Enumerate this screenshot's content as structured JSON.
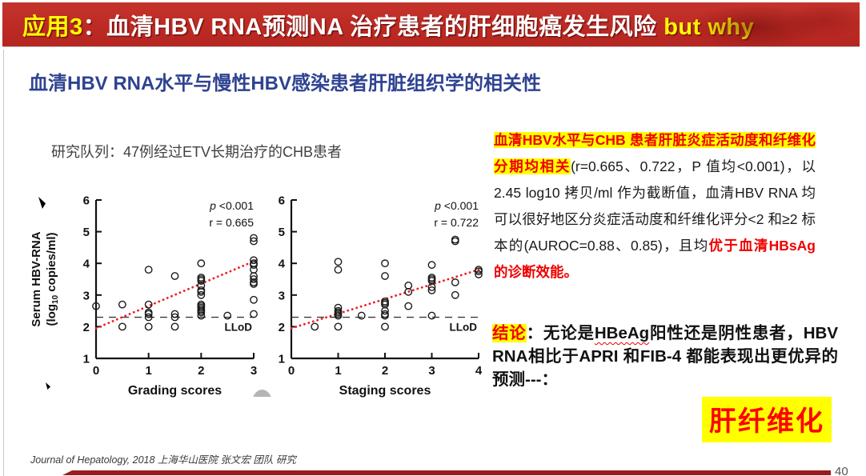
{
  "banner": {
    "tag": "应用3",
    "main": "：血清HBV RNA预测NA 治疗患者的肝细胞癌发生风险 ",
    "suffix": "but why"
  },
  "subtitle": "血清HBV RNA水平与慢性HBV感染患者肝脏组织学的相关性",
  "cohort": "研究队列：47例经过ETV长期治疗的CHB患者",
  "chart_data": [
    {
      "type": "scatter",
      "xlabel": "Grading scores",
      "ylabel_line1": "Serum HBV-RNA",
      "ylabel_line2_pre": "(log",
      "ylabel_line2_sub": "10",
      "ylabel_line2_post": " copies/ml)",
      "xlim": [
        0,
        3
      ],
      "ylim": [
        1,
        6
      ],
      "xticks": [
        0,
        1,
        2,
        3
      ],
      "yticks": [
        1,
        2,
        3,
        4,
        5,
        6
      ],
      "p_label": "p",
      "p_value": " <0.001",
      "r_label": "r = 0.665",
      "llod": {
        "y": 2.3,
        "label": "LLoD"
      },
      "trend": {
        "x1": 0,
        "y1": 1.95,
        "x2": 3.08,
        "y2": 4.12,
        "color": "#ee1c25"
      },
      "points": [
        [
          0,
          2.65
        ],
        [
          0.5,
          2.7
        ],
        [
          0.5,
          2.0
        ],
        [
          1,
          3.8
        ],
        [
          1,
          2.7
        ],
        [
          1,
          2.45
        ],
        [
          1,
          2.4
        ],
        [
          1,
          2.3
        ],
        [
          1,
          2.0
        ],
        [
          1.5,
          3.6
        ],
        [
          1.5,
          2.4
        ],
        [
          1.5,
          2.3
        ],
        [
          1.5,
          2.0
        ],
        [
          2,
          4.0
        ],
        [
          2,
          3.55
        ],
        [
          2,
          3.5
        ],
        [
          2,
          3.45
        ],
        [
          2,
          3.3
        ],
        [
          2,
          3.15
        ],
        [
          2,
          3.1
        ],
        [
          2,
          3.0
        ],
        [
          2,
          2.7
        ],
        [
          2,
          2.65
        ],
        [
          2,
          2.6
        ],
        [
          2,
          2.55
        ],
        [
          2,
          2.5
        ],
        [
          2,
          2.45
        ],
        [
          2,
          2.35
        ],
        [
          2.5,
          2.35
        ],
        [
          3,
          4.8
        ],
        [
          3,
          4.7
        ],
        [
          3,
          4.1
        ],
        [
          3,
          4.0
        ],
        [
          3,
          3.95
        ],
        [
          3,
          3.8
        ],
        [
          3,
          3.6
        ],
        [
          3,
          3.5
        ],
        [
          3,
          3.4
        ],
        [
          3,
          3.35
        ],
        [
          3,
          2.85
        ],
        [
          3,
          2.4
        ]
      ],
      "grid": false,
      "legend": "none"
    },
    {
      "type": "scatter",
      "xlabel": "Staging scores",
      "xlim": [
        0,
        4
      ],
      "ylim": [
        1,
        6
      ],
      "xticks": [
        0,
        1,
        2,
        3,
        4
      ],
      "yticks": [
        1,
        2,
        3,
        4,
        5,
        6
      ],
      "p_label": "p",
      "p_value": " <0.001",
      "r_label": "r = 0.722",
      "llod": {
        "y": 2.3,
        "label": "LLoD"
      },
      "trend": {
        "x1": 0,
        "y1": 1.95,
        "x2": 4.0,
        "y2": 3.8,
        "color": "#ee1c25"
      },
      "points": [
        [
          0.5,
          2.0
        ],
        [
          1,
          4.05
        ],
        [
          1,
          3.8
        ],
        [
          1,
          2.6
        ],
        [
          1,
          2.5
        ],
        [
          1,
          2.45
        ],
        [
          1,
          2.4
        ],
        [
          1,
          2.35
        ],
        [
          1,
          2.0
        ],
        [
          1.5,
          2.35
        ],
        [
          2,
          4.0
        ],
        [
          2,
          3.6
        ],
        [
          2,
          2.8
        ],
        [
          2,
          2.75
        ],
        [
          2,
          2.7
        ],
        [
          2,
          2.5
        ],
        [
          2,
          2.4
        ],
        [
          2,
          2.35
        ],
        [
          2,
          2.0
        ],
        [
          2.5,
          3.3
        ],
        [
          2.5,
          3.1
        ],
        [
          2.5,
          2.65
        ],
        [
          3,
          3.95
        ],
        [
          3,
          3.55
        ],
        [
          3,
          3.5
        ],
        [
          3,
          3.45
        ],
        [
          3,
          3.25
        ],
        [
          3,
          3.15
        ],
        [
          3,
          2.35
        ],
        [
          3.5,
          4.75
        ],
        [
          3.5,
          4.7
        ],
        [
          3.5,
          3.4
        ],
        [
          3.5,
          3.0
        ],
        [
          4,
          3.8
        ],
        [
          4,
          3.75
        ],
        [
          4,
          3.65
        ]
      ],
      "grid": false,
      "legend": "none"
    }
  ],
  "findings": {
    "highlight": "血清HBV水平与CHB 患者肝脏炎症活动度和纤维化分期均相关",
    "body": "(r=0.665、0.722，P 值均<0.001)，以2.45 log10 拷贝/ml 作为截断值，血清HBV RNA 均可以很好地区分炎症活动度和纤维化评分<2 和≥2 标本的(AUROC=0.88、0.85)，且均",
    "emphasis": "优于血清HBsAg 的诊断效能。"
  },
  "conclusion": {
    "label": "结论",
    "colon": "：",
    "pre": "无论是",
    "wavy": "HBeAg",
    "post": "阳性还是阴性患者，HBV RNA相比于APRI 和FIB-4 都能表现出更优异的预测---："
  },
  "fibrosis": "肝纤维化",
  "footer": {
    "citation": "Journal of Hepatology, 2018 上海华山医院 张文宏 团队 研究",
    "page": "40"
  },
  "colors": {
    "banner_red": "#bd2a24",
    "subtitle_blue": "#2e4391",
    "highlight_yellow": "#ffff00",
    "accent_red": "#f00000",
    "trend_red": "#ee1c25",
    "bottom_bar_maroon": "#9a1a1d"
  }
}
